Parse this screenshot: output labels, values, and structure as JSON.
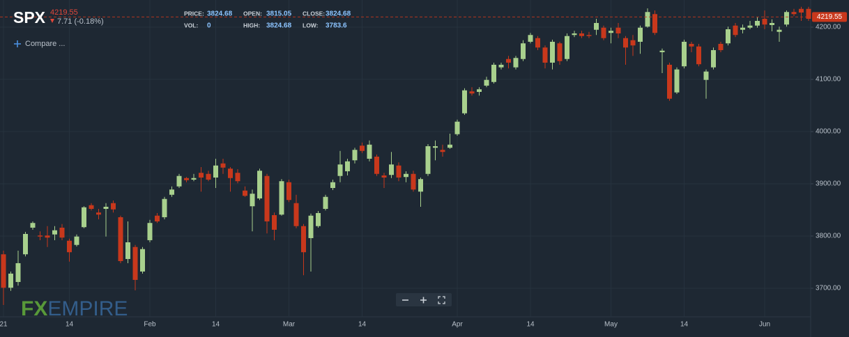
{
  "header": {
    "symbol": "SPX",
    "change": "7.71 (-0.18%)",
    "compare": "Compare ...",
    "info": [
      {
        "label": "PRICE:",
        "value": "3824.68"
      },
      {
        "label": "OPEN:",
        "value": "3815.05"
      },
      {
        "label": "CLOSE:",
        "value": "3824.68"
      },
      {
        "label": "VOL:",
        "value": "0"
      },
      {
        "label": "HIGH:",
        "value": "3824.68"
      },
      {
        "label": "LOW:",
        "value": "3783.6"
      }
    ],
    "logo": {
      "part1": "FX",
      "part2": "EMPIRE"
    }
  },
  "chart_data": {
    "type": "candlestick",
    "up_color": "#a8d08d",
    "down_color": "#c8381c",
    "grid": true,
    "last_price": 4219.55,
    "last_price_label": "4219.55",
    "last_price_color": "#c8381c",
    "ylim": [
      3645.3,
      4252
    ],
    "yticks": [
      {
        "value": 3700,
        "label": "3700.00"
      },
      {
        "value": 3800,
        "label": "3800.00"
      },
      {
        "value": 3900,
        "label": "3900.00"
      },
      {
        "value": 4000,
        "label": "4000.00"
      },
      {
        "value": 4100,
        "label": "4100.00"
      },
      {
        "value": 4200,
        "label": "4200.00"
      }
    ],
    "categories": [
      "21",
      null,
      null,
      null,
      null,
      null,
      null,
      null,
      null,
      "14",
      null,
      null,
      null,
      null,
      null,
      null,
      null,
      null,
      null,
      null,
      "Feb",
      null,
      null,
      null,
      null,
      null,
      null,
      null,
      null,
      "14",
      null,
      null,
      null,
      null,
      null,
      null,
      null,
      null,
      null,
      "Mar",
      null,
      null,
      null,
      null,
      null,
      null,
      null,
      null,
      null,
      "14",
      null,
      null,
      null,
      null,
      null,
      null,
      null,
      null,
      null,
      null,
      null,
      null,
      "Apr",
      null,
      null,
      null,
      null,
      null,
      null,
      null,
      null,
      null,
      "14",
      null,
      null,
      null,
      null,
      null,
      null,
      null,
      null,
      null,
      null,
      "May",
      null,
      null,
      null,
      null,
      null,
      null,
      null,
      null,
      null,
      "14",
      null,
      null,
      null,
      null,
      null,
      null,
      null,
      null,
      null,
      null,
      "Jun",
      null,
      null,
      null,
      null,
      null,
      null
    ],
    "open": [
      3765,
      3701,
      3712,
      3765,
      3816,
      3801,
      3801,
      3803,
      3816,
      3791,
      3783,
      3817,
      3859,
      3845,
      3852,
      3863,
      3836,
      3756,
      3779,
      3732,
      3792,
      3839,
      3836,
      3879,
      3895,
      3911,
      3908,
      3921,
      3919,
      3912,
      3939,
      3929,
      3921,
      3887,
      3857,
      3872,
      3915,
      3840,
      3841,
      3903,
      3863,
      3819,
      3796,
      3819,
      3852,
      3892,
      3915,
      3924,
      3945,
      3973,
      3948,
      3952,
      3916,
      3917,
      3935,
      3913,
      3919,
      3885,
      3919,
      3969,
      3965,
      3969,
      3995,
      4035,
      4077,
      4076,
      4088,
      4095,
      4123,
      4139,
      4123,
      4139,
      4172,
      4179,
      4161,
      4132,
      4169,
      4139,
      4185,
      4188,
      4185,
      4195,
      4199,
      4189,
      4199,
      4179,
      4175,
      4172,
      4201,
      4225,
      4152,
      4128,
      4075,
      4125,
      4168,
      4163,
      4099,
      4123,
      4168,
      4169,
      4203,
      4195,
      4199,
      4203,
      4216,
      4204,
      4191,
      4205,
      4229,
      4235,
      4235
    ],
    "high": [
      3772,
      3732,
      3772,
      3808,
      3828,
      3809,
      3819,
      3819,
      3823,
      3795,
      3803,
      3857,
      3863,
      3852,
      3863,
      3868,
      3839,
      3828,
      3783,
      3779,
      3831,
      3844,
      3875,
      3895,
      3919,
      3913,
      3919,
      3932,
      3925,
      3948,
      3948,
      3932,
      3928,
      3895,
      3889,
      3929,
      3919,
      3845,
      3909,
      3908,
      3879,
      3823,
      3843,
      3848,
      3879,
      3908,
      3963,
      3948,
      3969,
      3979,
      3983,
      3956,
      3921,
      3961,
      3941,
      3924,
      3925,
      3912,
      3976,
      3983,
      3975,
      3996,
      4023,
      4083,
      4085,
      4085,
      4105,
      4132,
      4132,
      4145,
      4145,
      4175,
      4189,
      4183,
      4165,
      4176,
      4172,
      4188,
      4193,
      4193,
      4191,
      4216,
      4203,
      4199,
      4208,
      4183,
      4185,
      4203,
      4236,
      4232,
      4159,
      4132,
      4123,
      4176,
      4172,
      4168,
      4119,
      4161,
      4172,
      4201,
      4208,
      4205,
      4212,
      4219,
      4232,
      4215,
      4201,
      4232,
      4235,
      4239,
      4239
    ],
    "low": [
      3668,
      3695,
      3705,
      3761,
      3812,
      3792,
      3779,
      3792,
      3792,
      3751,
      3780,
      3815,
      3849,
      3832,
      3799,
      3845,
      3748,
      3748,
      3696,
      3728,
      3788,
      3825,
      3832,
      3875,
      3892,
      3903,
      3905,
      3885,
      3905,
      3892,
      3919,
      3885,
      3901,
      3875,
      3809,
      3869,
      3805,
      3792,
      3839,
      3865,
      3815,
      3725,
      3732,
      3816,
      3849,
      3888,
      3903,
      3916,
      3939,
      3959,
      3943,
      3915,
      3892,
      3911,
      3905,
      3903,
      3885,
      3856,
      3915,
      3945,
      3952,
      3967,
      3992,
      4032,
      4069,
      4069,
      4085,
      4092,
      4119,
      4121,
      4119,
      4135,
      4169,
      4156,
      4121,
      4119,
      4128,
      4135,
      4181,
      4179,
      4179,
      4185,
      4175,
      4169,
      4179,
      4128,
      4145,
      4149,
      4199,
      4185,
      4112,
      4059,
      4072,
      4121,
      4152,
      4125,
      4063,
      4119,
      4152,
      4165,
      4181,
      4188,
      4196,
      4199,
      4196,
      4192,
      4172,
      4201,
      4221,
      4212,
      4212
    ],
    "close": [
      3701,
      3728,
      3748,
      3804,
      3825,
      3799,
      3797,
      3811,
      3797,
      3769,
      3799,
      3855,
      3852,
      3841,
      3856,
      3851,
      3752,
      3788,
      3716,
      3775,
      3825,
      3828,
      3871,
      3889,
      3915,
      3907,
      3911,
      3912,
      3908,
      3935,
      3931,
      3911,
      3905,
      3877,
      3881,
      3925,
      3828,
      3812,
      3905,
      3869,
      3819,
      3769,
      3839,
      3844,
      3875,
      3903,
      3937,
      3943,
      3965,
      3963,
      3975,
      3919,
      3912,
      3937,
      3912,
      3919,
      3889,
      3909,
      3972,
      3972,
      3961,
      3975,
      4019,
      4079,
      4073,
      4081,
      4099,
      4128,
      4128,
      4132,
      4141,
      4169,
      4185,
      4161,
      4132,
      4172,
      4135,
      4183,
      4188,
      4183,
      4183,
      4208,
      4179,
      4193,
      4188,
      4161,
      4165,
      4199,
      4229,
      4189,
      4155,
      4063,
      4119,
      4172,
      4163,
      4129,
      4115,
      4156,
      4156,
      4196,
      4185,
      4199,
      4203,
      4212,
      4205,
      4208,
      4195,
      4229,
      4225,
      4228,
      4216
    ]
  }
}
